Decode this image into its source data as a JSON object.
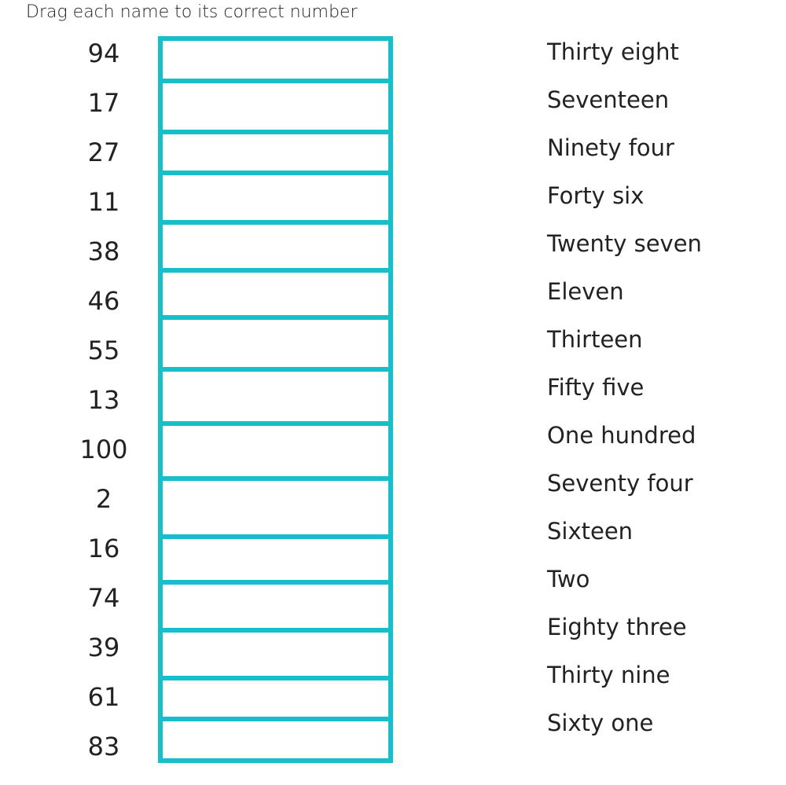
{
  "instruction": "Drag each name to its correct number",
  "accent_color": "#17c0c9",
  "numbers": [
    "94",
    "17",
    "27",
    "11",
    "38",
    "46",
    "55",
    "13",
    "100",
    "2",
    "16",
    "74",
    "39",
    "61",
    "83"
  ],
  "names": [
    "Thirty eight",
    "Seventeen",
    "Ninety four",
    "Forty six",
    "Twenty seven",
    "Eleven",
    "Thirteen",
    "Fifty five",
    "One hundred",
    "Seventy four",
    "Sixteen",
    "Two",
    "Eighty three",
    "Thirty nine",
    "Sixty one"
  ],
  "slots": [
    "",
    "",
    "",
    "",
    "",
    "",
    "",
    "",
    "",
    "",
    "",
    "",
    "",
    "",
    ""
  ]
}
